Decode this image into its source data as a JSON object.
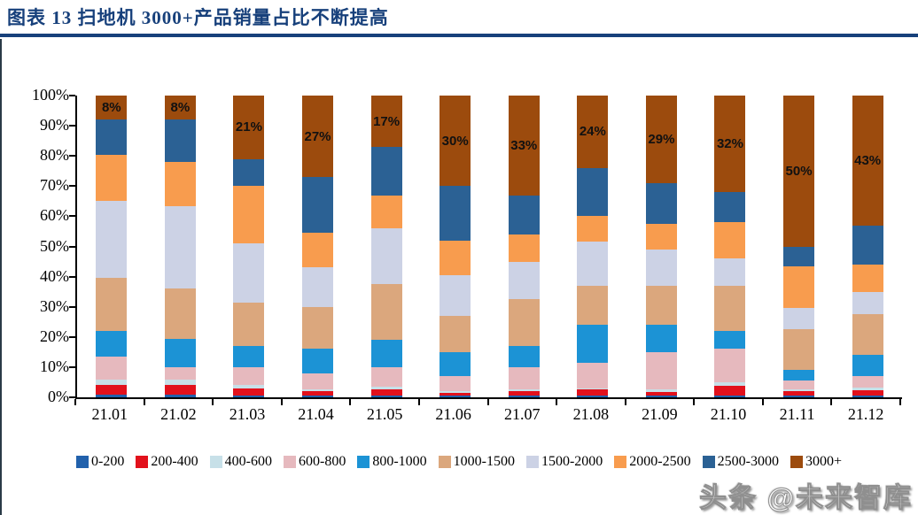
{
  "figure": {
    "title": "图表 13   扫地机 3000+产品销量占比不断提高",
    "watermark": "头条 @未来智库",
    "accent_color": "#17407B"
  },
  "chart_data": {
    "type": "bar",
    "stacked": true,
    "percent_stacked": true,
    "grid": false,
    "legend_position": "bottom",
    "ylim": [
      0,
      100
    ],
    "yticks": [
      "100%",
      "90%",
      "80%",
      "70%",
      "60%",
      "50%",
      "40%",
      "30%",
      "20%",
      "10%",
      "0%"
    ],
    "categories": [
      "21.01",
      "21.02",
      "21.03",
      "21.04",
      "21.05",
      "21.06",
      "21.07",
      "21.08",
      "21.09",
      "21.10",
      "21.11",
      "21.12"
    ],
    "series": [
      {
        "name": "0-200",
        "color": "#2161AC",
        "values": [
          1,
          1,
          0.5,
          0.5,
          0.5,
          0.5,
          0.5,
          0.5,
          0.7,
          0.7,
          0.5,
          0.7
        ]
      },
      {
        "name": "200-400",
        "color": "#E2111C",
        "values": [
          3,
          3,
          2.5,
          1.5,
          2,
          1,
          1.5,
          2,
          1.2,
          3,
          1.5,
          1.8
        ]
      },
      {
        "name": "400-600",
        "color": "#C7E0E8",
        "values": [
          2,
          2,
          1,
          0.5,
          1,
          0.5,
          0.5,
          0.5,
          0.7,
          1.2,
          0.5,
          0.8
        ]
      },
      {
        "name": "600-800",
        "color": "#E6B9BE",
        "values": [
          7.5,
          4,
          6,
          5.5,
          6.5,
          5,
          7.5,
          8.5,
          12.4,
          11.1,
          3,
          3.7
        ]
      },
      {
        "name": "800-1000",
        "color": "#1C93D5",
        "values": [
          8.5,
          9.5,
          7,
          8,
          9,
          8,
          7,
          12.5,
          9,
          6,
          3.5,
          7
        ]
      },
      {
        "name": "1000-1500",
        "color": "#DBA77D",
        "values": [
          17.5,
          16.5,
          14.5,
          14,
          18.5,
          12,
          15.5,
          13,
          13,
          15,
          13.5,
          13.5
        ]
      },
      {
        "name": "1500-2000",
        "color": "#CCD2E5",
        "values": [
          25.5,
          27.5,
          19.5,
          13,
          18.5,
          13.5,
          12.5,
          14.5,
          12,
          9,
          7,
          7.5
        ]
      },
      {
        "name": "2000-2500",
        "color": "#F89C4E",
        "values": [
          15.5,
          14.5,
          19,
          11.5,
          11,
          11.5,
          9,
          8.5,
          8.5,
          12,
          14,
          9
        ]
      },
      {
        "name": "2500-3000",
        "color": "#2B6194",
        "values": [
          11.5,
          14,
          9,
          18.5,
          16,
          18,
          13,
          16,
          13.5,
          10,
          6.5,
          13
        ]
      },
      {
        "name": "3000+",
        "color": "#9C4B0D",
        "values": [
          8,
          8,
          21,
          27,
          17,
          30,
          33,
          24,
          29,
          32,
          50,
          43
        ]
      }
    ],
    "data_labels": {
      "series": "3000+",
      "values": [
        "8%",
        "8%",
        "21%",
        "27%",
        "17%",
        "30%",
        "33%",
        "24%",
        "29%",
        "32%",
        "50%",
        "43%"
      ]
    }
  }
}
